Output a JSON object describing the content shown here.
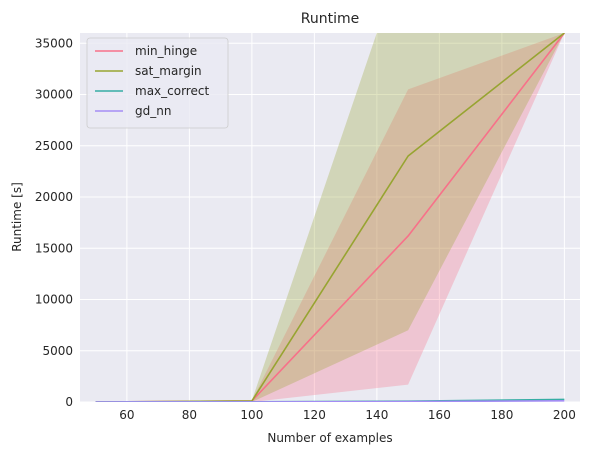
{
  "chart_data": {
    "type": "line",
    "title": "Runtime",
    "xlabel": "Number of examples",
    "ylabel": "Runtime [s]",
    "xlim": [
      45,
      205
    ],
    "ylim": [
      0,
      36000
    ],
    "xticks": [
      60,
      80,
      100,
      120,
      140,
      160,
      180,
      200
    ],
    "yticks": [
      0,
      5000,
      10000,
      15000,
      20000,
      25000,
      30000,
      35000
    ],
    "grid": true,
    "legend_position": "top-left",
    "x": [
      50,
      100,
      150,
      200
    ],
    "series": [
      {
        "name": "min_hinge",
        "color": "#f77189",
        "values": [
          0,
          100,
          16200,
          36000
        ],
        "band_lower": [
          0,
          0,
          1700,
          36000
        ],
        "band_upper": [
          0,
          150,
          30500,
          36000
        ],
        "band_color": "#f77189"
      },
      {
        "name": "sat_margin",
        "color": "#97a431",
        "values": [
          0,
          100,
          24000,
          36000
        ],
        "band_lower": [
          0,
          0,
          7000,
          36000
        ],
        "band_upper": [
          0,
          150,
          45000,
          36000
        ],
        "band_color": "#97a431"
      },
      {
        "name": "max_correct",
        "color": "#36ada4",
        "values": [
          0,
          20,
          80,
          250
        ]
      },
      {
        "name": "gd_nn",
        "color": "#a48cf4",
        "values": [
          0,
          10,
          40,
          120
        ]
      }
    ]
  }
}
